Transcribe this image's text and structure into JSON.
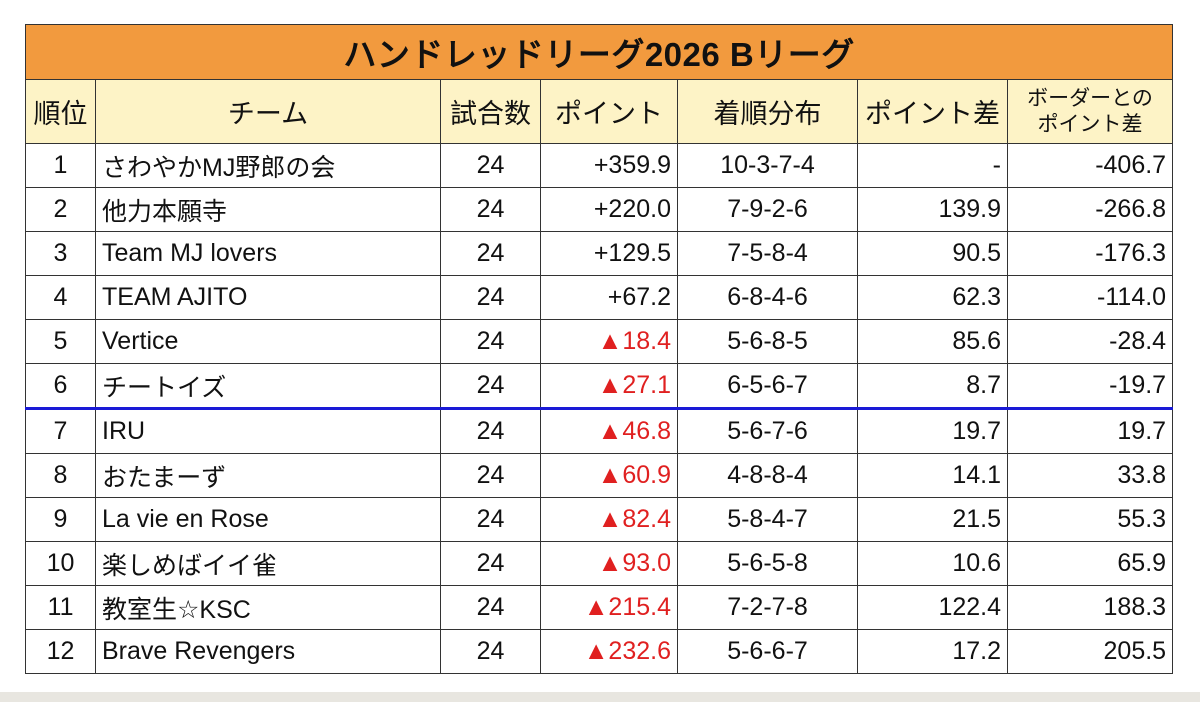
{
  "title": "ハンドレッドリーグ2026 Bリーグ",
  "headers": {
    "rank": "順位",
    "team": "チーム",
    "games": "試合数",
    "points": "ポイント",
    "distribution": "着順分布",
    "point_diff": "ポイント差",
    "border_diff_line1": "ボーダーとの",
    "border_diff_line2": "ポイント差"
  },
  "colors": {
    "title_bg": "#f29a3e",
    "header_bg": "#fdf3c6",
    "negative_text": "#e02020",
    "border_line": "#1a1ad6"
  },
  "rows": [
    {
      "rank": "1",
      "team": "さわやかMJ野郎の会",
      "games": "24",
      "points": "+359.9",
      "distribution": "10-3-7-4",
      "point_diff": "-",
      "border_diff": "-406.7"
    },
    {
      "rank": "2",
      "team": "他力本願寺",
      "games": "24",
      "points": "+220.0",
      "distribution": "7-9-2-6",
      "point_diff": "139.9",
      "border_diff": "-266.8"
    },
    {
      "rank": "3",
      "team": "Team MJ lovers",
      "games": "24",
      "points": "+129.5",
      "distribution": "7-5-8-4",
      "point_diff": "90.5",
      "border_diff": "-176.3"
    },
    {
      "rank": "4",
      "team": "TEAM AJITO",
      "games": "24",
      "points": "+67.2",
      "distribution": "6-8-4-6",
      "point_diff": "62.3",
      "border_diff": "-114.0"
    },
    {
      "rank": "5",
      "team": "Vertice",
      "games": "24",
      "points": "▲18.4",
      "distribution": "5-6-8-5",
      "point_diff": "85.6",
      "border_diff": "-28.4"
    },
    {
      "rank": "6",
      "team": "チートイズ",
      "games": "24",
      "points": "▲27.1",
      "distribution": "6-5-6-7",
      "point_diff": "8.7",
      "border_diff": "-19.7"
    },
    {
      "rank": "7",
      "team": "IRU",
      "games": "24",
      "points": "▲46.8",
      "distribution": "5-6-7-6",
      "point_diff": "19.7",
      "border_diff": "19.7"
    },
    {
      "rank": "8",
      "team": "おたまーず",
      "games": "24",
      "points": "▲60.9",
      "distribution": "4-8-8-4",
      "point_diff": "14.1",
      "border_diff": "33.8"
    },
    {
      "rank": "9",
      "team": "La vie en Rose",
      "games": "24",
      "points": "▲82.4",
      "distribution": "5-8-4-7",
      "point_diff": "21.5",
      "border_diff": "55.3"
    },
    {
      "rank": "10",
      "team": "楽しめばイイ雀",
      "games": "24",
      "points": "▲93.0",
      "distribution": "5-6-5-8",
      "point_diff": "10.6",
      "border_diff": "65.9"
    },
    {
      "rank": "11",
      "team": "教室生☆KSC",
      "games": "24",
      "points": "▲215.4",
      "distribution": "7-2-7-8",
      "point_diff": "122.4",
      "border_diff": "188.3"
    },
    {
      "rank": "12",
      "team": "Brave Revengers",
      "games": "24",
      "points": "▲232.6",
      "distribution": "5-6-6-7",
      "point_diff": "17.2",
      "border_diff": "205.5"
    }
  ]
}
